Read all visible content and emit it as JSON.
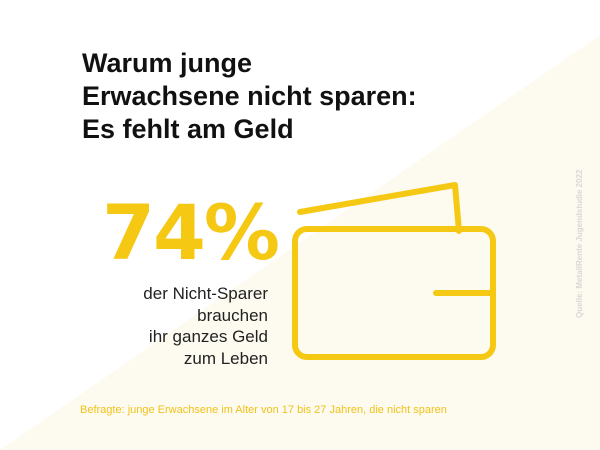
{
  "title": {
    "lines": [
      "Warum junge",
      "Erwachsene nicht sparen:",
      "Es fehlt am Geld"
    ]
  },
  "stat": {
    "value": "74%",
    "description_lines": [
      "der Nicht-Sparer",
      "brauchen",
      "ihr ganzes Geld",
      "zum Leben"
    ]
  },
  "footnote": "Befragte: junge Erwachsene im Alter von 17 bis 27 Jahren, die nicht sparen",
  "source": "Quelle: MetallRente Jugendstudie 2022",
  "icon": "wallet-icon",
  "colors": {
    "accent": "#f5c814",
    "background_shape": "#fdfaf0",
    "title": "#111111",
    "source": "#d8d8d8"
  }
}
